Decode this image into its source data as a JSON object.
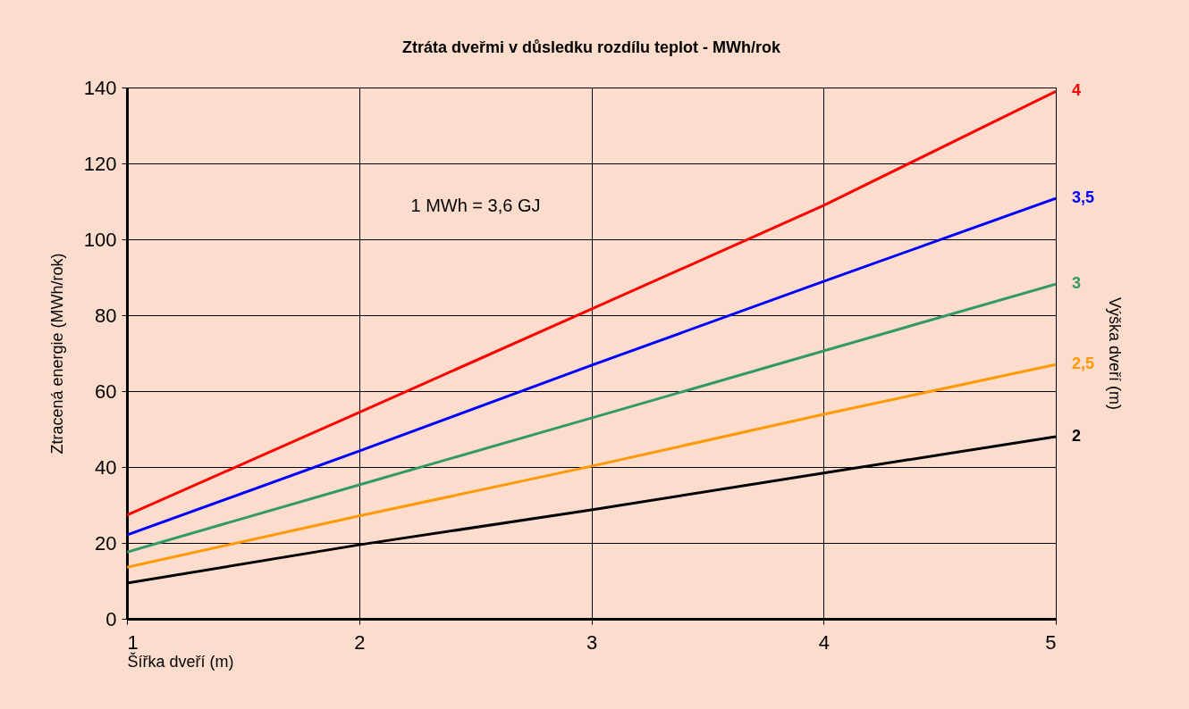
{
  "chart_data": {
    "type": "line",
    "title": "Ztráta dveřmi v důsledku rozdílu teplot - MWh/rok",
    "xlabel": "Šířka dveří (m)",
    "ylabel": "Ztracená energie (MWh/rok)",
    "y2label": "Výška dveří (m)",
    "annotations": [
      "1 MWh = 3,6 GJ"
    ],
    "x": [
      1,
      2,
      3,
      4,
      5
    ],
    "xlim": [
      1,
      5
    ],
    "xticks": [
      1,
      2,
      3,
      4,
      5
    ],
    "ylim": [
      0,
      140
    ],
    "yticks": [
      0,
      20,
      40,
      60,
      80,
      100,
      120,
      140
    ],
    "grid": true,
    "legend": false,
    "series": [
      {
        "name": "4",
        "color": "#ff0000",
        "values": [
          27.3,
          54.4,
          81.6,
          108.9,
          139
        ]
      },
      {
        "name": "3,5",
        "color": "#0000ff",
        "values": [
          22.1,
          44.2,
          66.8,
          88.9,
          110.8
        ]
      },
      {
        "name": "3",
        "color": "#339966",
        "values": [
          17.6,
          35.3,
          52.9,
          70.6,
          88.2
        ]
      },
      {
        "name": "2,5",
        "color": "#ff9900",
        "values": [
          13.6,
          27.1,
          40.2,
          53.9,
          67
        ]
      },
      {
        "name": "2",
        "color": "#000000",
        "values": [
          9.4,
          19.5,
          28.7,
          38.4,
          48
        ]
      }
    ]
  }
}
